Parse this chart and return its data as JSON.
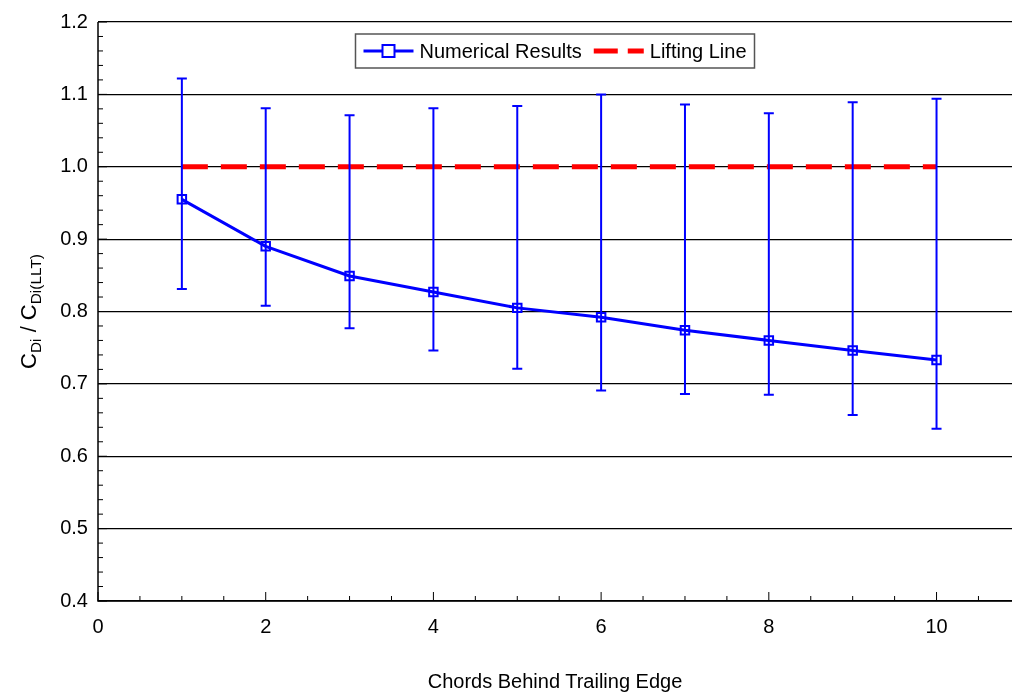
{
  "chart_data": {
    "type": "line",
    "xlabel": "Chords Behind Trailing Edge",
    "ylabel": "C$_{Di}$ / C$_{Di(LLT)}$",
    "xlim": [
      0,
      10.9
    ],
    "xticks": [
      0,
      {
        "value": 0.5,
        "label": null
      },
      {
        "value": 1,
        "label": null
      },
      {
        "value": 1.5,
        "label": null
      },
      2,
      {
        "value": 2.5,
        "label": null
      },
      {
        "value": 3,
        "label": null
      },
      {
        "value": 3.5,
        "label": null
      },
      4,
      {
        "value": 4.5,
        "label": null
      },
      {
        "value": 5,
        "label": null
      },
      {
        "value": 5.5,
        "label": null
      },
      6,
      {
        "value": 6.5,
        "label": null
      },
      {
        "value": 7,
        "label": null
      },
      {
        "value": 7.5,
        "label": null
      },
      8,
      {
        "value": 8.5,
        "label": null
      },
      {
        "value": 9,
        "label": null
      },
      {
        "value": 9.5,
        "label": null
      },
      10,
      {
        "value": 10.5,
        "label": null
      }
    ],
    "ylim": [
      0.4,
      1.2
    ],
    "yticks": [
      {
        "value": 0.4,
        "label": "0.4"
      },
      {
        "value": 0.42,
        "label": null
      },
      {
        "value": 0.44,
        "label": null
      },
      {
        "value": 0.46,
        "label": null
      },
      {
        "value": 0.48,
        "label": null
      },
      {
        "value": 0.5,
        "label": "0.5"
      },
      {
        "value": 0.52,
        "label": null
      },
      {
        "value": 0.54,
        "label": null
      },
      {
        "value": 0.56,
        "label": null
      },
      {
        "value": 0.58,
        "label": null
      },
      {
        "value": 0.6,
        "label": "0.6"
      },
      {
        "value": 0.62,
        "label": null
      },
      {
        "value": 0.64,
        "label": null
      },
      {
        "value": 0.66,
        "label": null
      },
      {
        "value": 0.68,
        "label": null
      },
      {
        "value": 0.7,
        "label": "0.7"
      },
      {
        "value": 0.72,
        "label": null
      },
      {
        "value": 0.74,
        "label": null
      },
      {
        "value": 0.76,
        "label": null
      },
      {
        "value": 0.78,
        "label": null
      },
      {
        "value": 0.8,
        "label": "0.8"
      },
      {
        "value": 0.82,
        "label": null
      },
      {
        "value": 0.84,
        "label": null
      },
      {
        "value": 0.86,
        "label": null
      },
      {
        "value": 0.88,
        "label": null
      },
      {
        "value": 0.9,
        "label": "0.9"
      },
      {
        "value": 0.92,
        "label": null
      },
      {
        "value": 0.94,
        "label": null
      },
      {
        "value": 0.96,
        "label": null
      },
      {
        "value": 0.98,
        "label": null
      },
      {
        "value": 1.0,
        "label": "1.0"
      },
      {
        "value": 1.02,
        "label": null
      },
      {
        "value": 1.04,
        "label": null
      },
      {
        "value": 1.06,
        "label": null
      },
      {
        "value": 1.08,
        "label": null
      },
      {
        "value": 1.1,
        "label": "1.1"
      },
      {
        "value": 1.12,
        "label": null
      },
      {
        "value": 1.14,
        "label": null
      },
      {
        "value": 1.16,
        "label": null
      },
      {
        "value": 1.18,
        "label": null
      },
      {
        "value": 1.2,
        "label": "1.2"
      }
    ],
    "grid": "y",
    "legend": "top",
    "series": [
      {
        "name": "Numerical Results",
        "color": "#0000ff",
        "marker": "square",
        "line_style": "solid",
        "x": [
          1,
          2,
          3,
          4,
          5,
          6,
          7,
          8,
          9,
          10
        ],
        "values": [
          0.955,
          0.89,
          0.849,
          0.827,
          0.805,
          0.792,
          0.774,
          0.76,
          0.746,
          0.733
        ],
        "errors": [
          [
            0.831,
            1.122
          ],
          [
            0.808,
            1.081
          ],
          [
            0.777,
            1.071
          ],
          [
            0.746,
            1.081
          ],
          [
            0.721,
            1.084
          ],
          [
            0.691,
            1.1
          ],
          [
            0.686,
            1.086
          ],
          [
            0.685,
            1.074
          ],
          [
            0.657,
            1.089
          ],
          [
            0.638,
            1.094
          ]
        ]
      },
      {
        "name": "Lifting Line",
        "color": "#ff0000",
        "marker": "none",
        "line_style": "dashed",
        "x": [
          1,
          10
        ],
        "values": [
          1.0,
          1.0
        ]
      }
    ]
  }
}
